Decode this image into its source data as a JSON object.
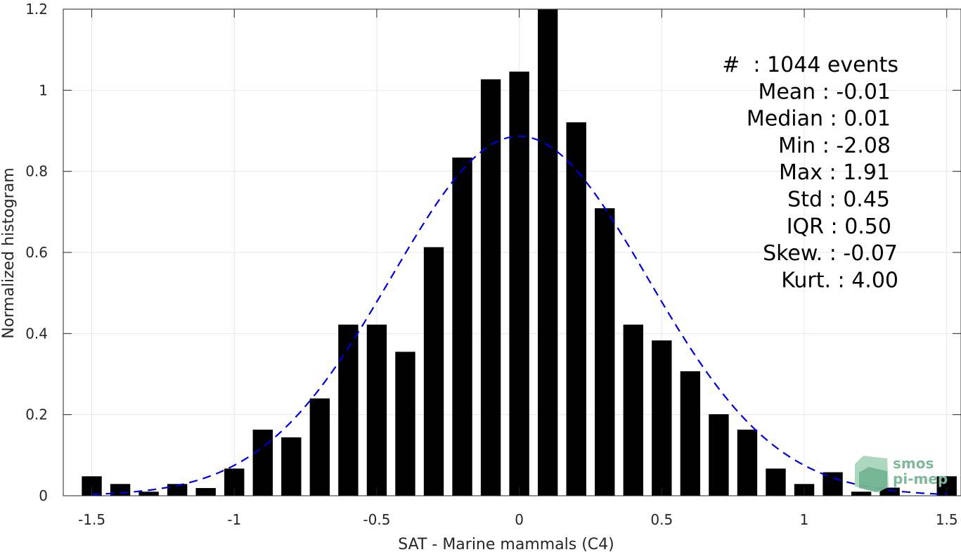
{
  "chart_data": {
    "type": "bar",
    "xlabel": "SAT - Marine mammals (C4)",
    "ylabel": "Normalized histogram",
    "xlim": [
      -1.6,
      1.55
    ],
    "ylim": [
      0,
      1.2
    ],
    "grid": true,
    "xticks": [
      -1.5,
      -1,
      -0.5,
      0,
      0.5,
      1,
      1.5
    ],
    "xtick_labels": [
      "-1.5",
      "-1",
      "-0.5",
      "0",
      "0.5",
      "1",
      "1.5"
    ],
    "yticks": [
      0,
      0.2,
      0.4,
      0.6,
      0.8,
      1,
      1.2
    ],
    "ytick_labels": [
      "0",
      "0.2",
      "0.4",
      "0.6",
      "0.8",
      "1",
      "1.2"
    ],
    "bar_width": 0.07,
    "bars": {
      "x": [
        -1.5,
        -1.4,
        -1.3,
        -1.2,
        -1.1,
        -1.0,
        -0.9,
        -0.8,
        -0.7,
        -0.6,
        -0.5,
        -0.4,
        -0.3,
        -0.2,
        -0.1,
        0.0,
        0.1,
        0.2,
        0.3,
        0.4,
        0.5,
        0.6,
        0.7,
        0.8,
        0.9,
        1.0,
        1.1,
        1.2,
        1.3,
        1.5
      ],
      "values": [
        0.048,
        0.029,
        0.01,
        0.029,
        0.019,
        0.067,
        0.163,
        0.144,
        0.24,
        0.422,
        0.422,
        0.355,
        0.613,
        0.834,
        1.027,
        1.046,
        1.199,
        0.921,
        0.709,
        0.422,
        0.383,
        0.307,
        0.201,
        0.163,
        0.067,
        0.029,
        0.058,
        0.01,
        0.02,
        0.048
      ],
      "color": "#000000"
    },
    "fit_curve": {
      "style": "dashed",
      "color": "#0000dd",
      "mean": 0.0,
      "std": 0.45
    },
    "stats": [
      {
        "label": "#  ",
        "value": ": 1044 events"
      },
      {
        "label": "Mean ",
        "value": ": -0.01"
      },
      {
        "label": "Median ",
        "value": ": 0.01"
      },
      {
        "label": "Min ",
        "value": ": -2.08"
      },
      {
        "label": "Max ",
        "value": ": 1.91"
      },
      {
        "label": "Std ",
        "value": ": 0.45"
      },
      {
        "label": "IQR ",
        "value": ": 0.50"
      },
      {
        "label": "Skew. ",
        "value": ": -0.07"
      },
      {
        "label": "Kurt. ",
        "value": ": 4.00"
      }
    ]
  },
  "logo": {
    "line1": "smos",
    "line2": "pi-mep",
    "color": "#7fb89a"
  }
}
